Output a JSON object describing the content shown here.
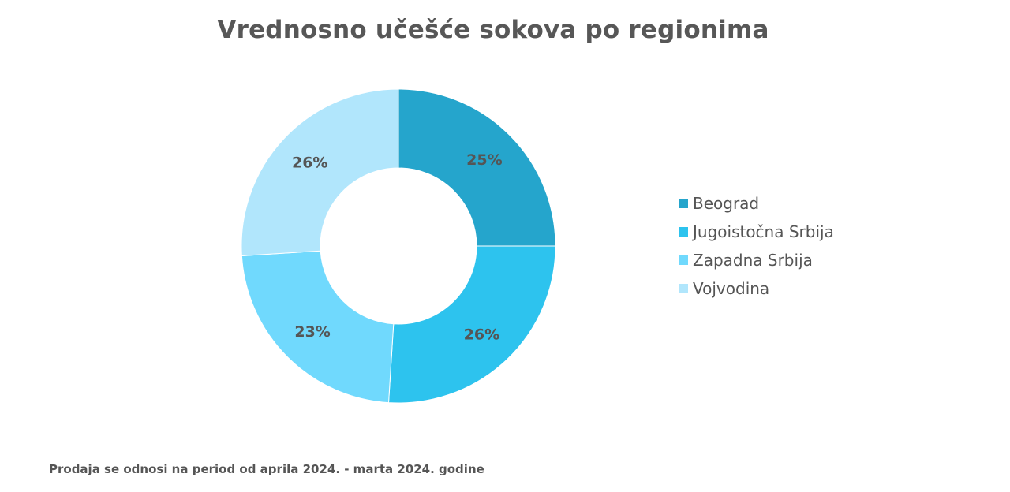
{
  "chart_data": {
    "type": "pie",
    "variant": "donut",
    "title": "Vrednosno učešće sokova po regionima",
    "categories": [
      "Beograd",
      "Jugoistočna Srbija",
      "Zapadna Srbija",
      "Vojvodina"
    ],
    "values": [
      25,
      26,
      23,
      26
    ],
    "labels": [
      "25%",
      "26%",
      "23%",
      "26%"
    ],
    "colors": [
      "#25a5cc",
      "#2dc3ee",
      "#70d9fd",
      "#b1e6fc"
    ],
    "legend_position": "right"
  },
  "footnote": "Prodaja se odnosi na period od aprila 2024. - marta 2024. godine"
}
